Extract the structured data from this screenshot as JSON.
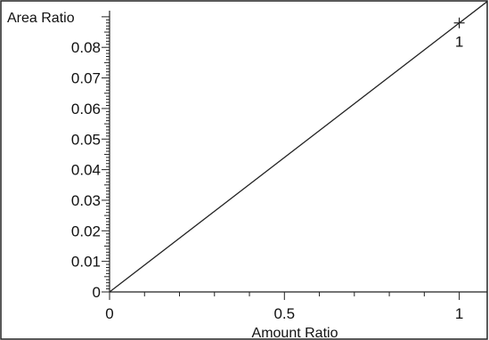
{
  "chart_data": {
    "type": "line",
    "title": "",
    "xlabel": "Amount Ratio",
    "ylabel": "Area Ratio",
    "xlim": [
      0,
      1.08
    ],
    "ylim": [
      0,
      0.092
    ],
    "x_ticks": [
      0,
      0.5,
      1
    ],
    "x_tick_labels": [
      "0",
      "0.5",
      "1"
    ],
    "y_ticks": [
      0,
      0.01,
      0.02,
      0.03,
      0.04,
      0.05,
      0.06,
      0.07,
      0.08
    ],
    "y_tick_labels": [
      "0",
      "0.01",
      "0.02",
      "0.03",
      "0.04",
      "0.05",
      "0.06",
      "0.07",
      "0.08"
    ],
    "grid": false,
    "series": [
      {
        "x": [
          0,
          1.08
        ],
        "y": [
          0,
          0.095
        ],
        "color": "#222222"
      }
    ],
    "points": [
      {
        "x": 1,
        "y": 0.088,
        "label": "1",
        "marker": "plus"
      }
    ]
  }
}
